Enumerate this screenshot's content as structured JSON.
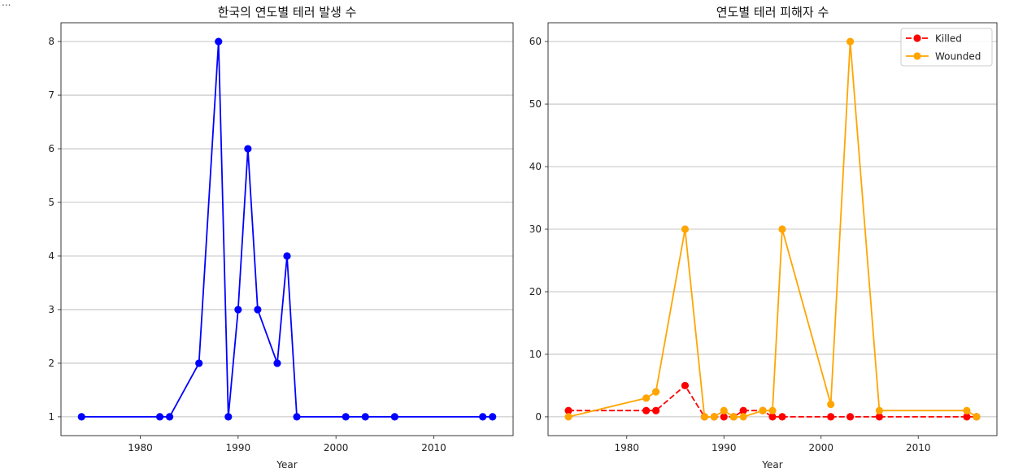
{
  "prompt_marker": "...",
  "chart_data": [
    {
      "type": "line",
      "title": "한국의 연도별 테러 발생 수",
      "xlabel": "",
      "ylabel": "",
      "xlim": [
        1971.9,
        2018.1
      ],
      "ylim": [
        0.65,
        8.35
      ],
      "xticks": [
        1980,
        1990,
        2000,
        2010
      ],
      "yticks": [
        1,
        2,
        3,
        4,
        5,
        6,
        7,
        8
      ],
      "grid": "y",
      "series": [
        {
          "color": "#0000ff",
          "marker": "circle",
          "linestyle": "solid",
          "x": [
            1974,
            1982,
            1983,
            1986,
            1988,
            1989,
            1990,
            1991,
            1992,
            1994,
            1995,
            1996,
            2001,
            2003,
            2006,
            2015,
            2016
          ],
          "y": [
            1,
            1,
            1,
            2,
            8,
            1,
            3,
            6,
            3,
            2,
            4,
            1,
            1,
            1,
            1,
            1,
            1
          ]
        }
      ]
    },
    {
      "type": "line",
      "title": "연도별 테러 피해자 수",
      "xlabel": "Year",
      "ylabel": "",
      "xlim": [
        1971.9,
        2018.1
      ],
      "ylim": [
        -3,
        63
      ],
      "xticks": [
        1980,
        1990,
        2000,
        2010
      ],
      "yticks": [
        0,
        10,
        20,
        30,
        40,
        50,
        60
      ],
      "grid": "y",
      "legend_position": "top-right",
      "series": [
        {
          "name": "Killed",
          "color": "#ff0000",
          "marker": "circle",
          "linestyle": "dashed",
          "x": [
            1974,
            1982,
            1983,
            1986,
            1988,
            1989,
            1990,
            1991,
            1992,
            1994,
            1995,
            1996,
            2001,
            2003,
            2006,
            2015,
            2016
          ],
          "y": [
            1,
            1,
            1,
            5,
            0,
            0,
            0,
            0,
            1,
            1,
            0,
            0,
            0,
            0,
            0,
            0,
            0
          ]
        },
        {
          "name": "Wounded",
          "color": "#ffa500",
          "marker": "circle",
          "linestyle": "solid",
          "x": [
            1974,
            1982,
            1983,
            1986,
            1988,
            1989,
            1990,
            1991,
            1992,
            1994,
            1995,
            1996,
            2001,
            2003,
            2006,
            2015,
            2016
          ],
          "y": [
            0,
            3,
            4,
            30,
            0,
            0,
            1,
            0,
            0,
            1,
            1,
            30,
            2,
            60,
            1,
            1,
            0
          ]
        }
      ]
    }
  ],
  "left_xlabel": "Year"
}
